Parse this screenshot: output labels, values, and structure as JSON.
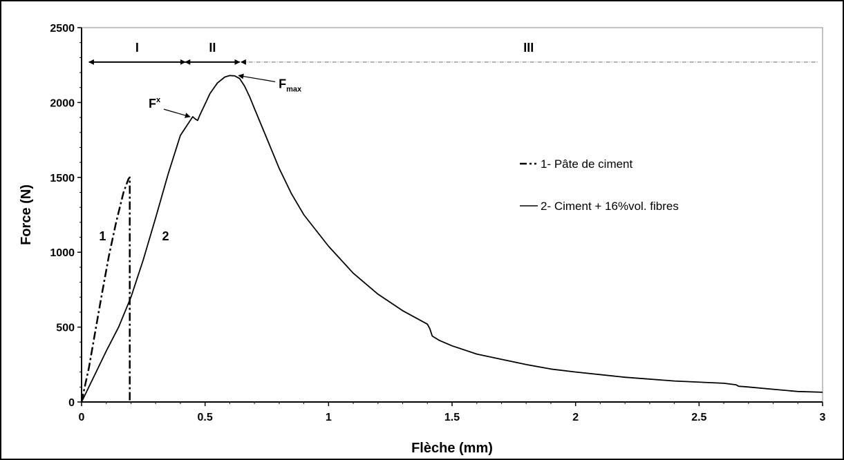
{
  "chart_data": {
    "type": "line",
    "xlabel": "Flèche (mm)",
    "ylabel": "Force (N)",
    "xlim": [
      0,
      3
    ],
    "ylim": [
      0,
      2500
    ],
    "x_ticks": [
      {
        "value": 0,
        "label": "0"
      },
      {
        "value": 0.5,
        "label": "0.5"
      },
      {
        "value": 1,
        "label": "1"
      },
      {
        "value": 1.5,
        "label": "1.5"
      },
      {
        "value": 2,
        "label": "2"
      },
      {
        "value": 2.5,
        "label": "2.5"
      },
      {
        "value": 3,
        "label": "3"
      }
    ],
    "y_ticks": [
      {
        "value": 0,
        "label": "0"
      },
      {
        "value": 500,
        "label": "500"
      },
      {
        "value": 1000,
        "label": "1000"
      },
      {
        "value": 1500,
        "label": "1500"
      },
      {
        "value": 2000,
        "label": "2000"
      },
      {
        "value": 2500,
        "label": "2500"
      }
    ],
    "grid": false,
    "legend_position": "right",
    "series": [
      {
        "name": "1- Pâte de ciment",
        "line_style": "dashdot",
        "color": "#000000",
        "x": [
          0.0,
          0.01,
          0.03,
          0.05,
          0.08,
          0.11,
          0.14,
          0.17,
          0.19,
          0.195,
          0.195
        ],
        "y": [
          0,
          80,
          230,
          420,
          700,
          970,
          1200,
          1400,
          1490,
          1500,
          0
        ]
      },
      {
        "name": "2- Ciment + 16%vol. fibres",
        "line_style": "solid",
        "color": "#000000",
        "x": [
          0.0,
          0.05,
          0.1,
          0.15,
          0.2,
          0.25,
          0.3,
          0.35,
          0.4,
          0.45,
          0.46,
          0.47,
          0.48,
          0.5,
          0.52,
          0.55,
          0.58,
          0.6,
          0.62,
          0.64,
          0.66,
          0.68,
          0.7,
          0.75,
          0.8,
          0.85,
          0.9,
          1.0,
          1.1,
          1.2,
          1.3,
          1.4,
          1.41,
          1.42,
          1.45,
          1.5,
          1.6,
          1.7,
          1.8,
          1.9,
          2.0,
          2.2,
          2.4,
          2.6,
          2.65,
          2.66,
          2.7,
          2.8,
          2.9,
          3.0
        ],
        "y": [
          0,
          170,
          340,
          500,
          700,
          950,
          1230,
          1520,
          1780,
          1905,
          1890,
          1880,
          1920,
          1990,
          2060,
          2130,
          2170,
          2180,
          2178,
          2160,
          2110,
          2040,
          1960,
          1760,
          1560,
          1390,
          1250,
          1040,
          860,
          720,
          610,
          520,
          490,
          440,
          410,
          375,
          320,
          285,
          250,
          220,
          200,
          165,
          140,
          125,
          115,
          105,
          100,
          85,
          70,
          65
        ]
      }
    ],
    "annotations": {
      "regions": [
        {
          "label": "I",
          "x_start": 0.03,
          "x_end": 0.42
        },
        {
          "label": "II",
          "x_start": 0.42,
          "x_end": 0.64
        },
        {
          "label": "III",
          "x_start": 0.64,
          "x_end": 2.98
        }
      ],
      "region_y": 2270,
      "points": [
        {
          "label": "F",
          "superscript": "x",
          "x": 0.445,
          "y": 1900
        },
        {
          "label": "F",
          "subscript": "max",
          "x": 0.63,
          "y": 2180
        }
      ],
      "curve_labels": [
        {
          "text": "1",
          "x": 0.085,
          "y": 1080
        },
        {
          "text": "2",
          "x": 0.34,
          "y": 1080
        }
      ]
    }
  }
}
